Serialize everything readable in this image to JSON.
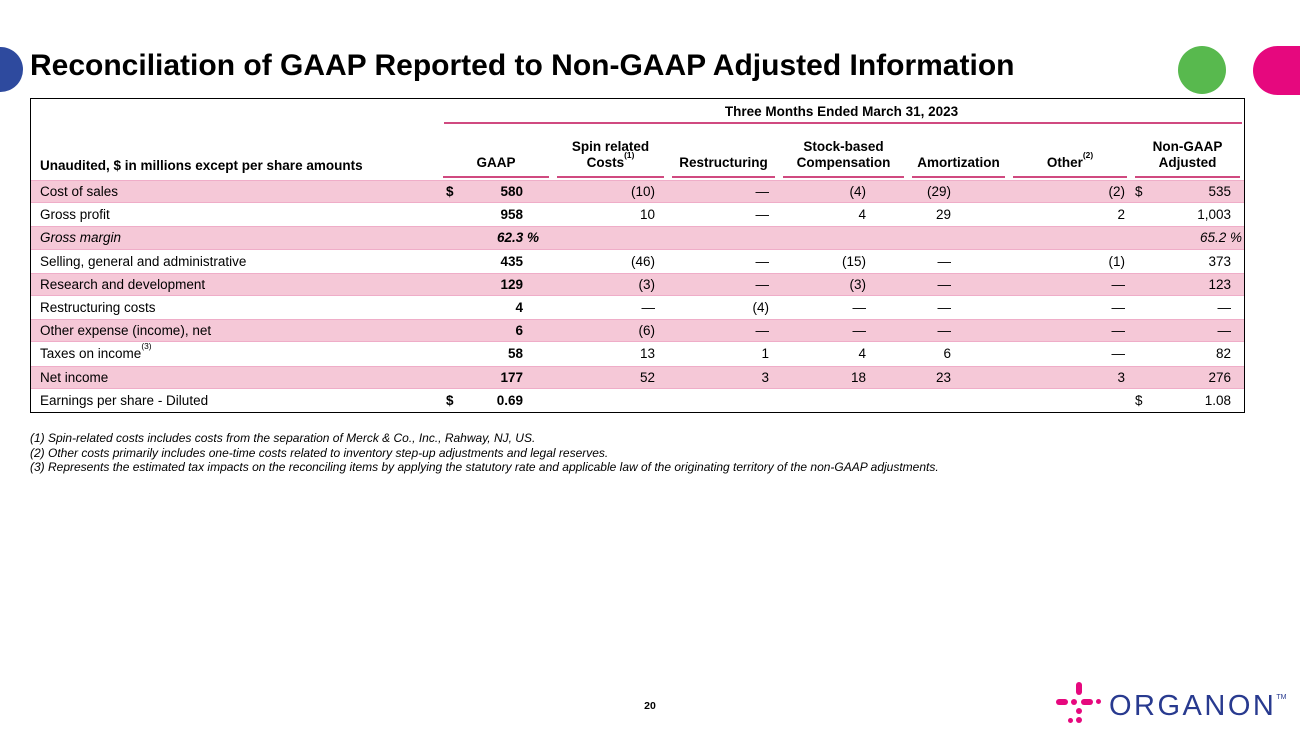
{
  "slide": {
    "title": "Reconciliation of GAAP Reported to Non-GAAP Adjusted Information",
    "page_number": "20"
  },
  "table": {
    "period_header": "Three Months Ended March 31, 2023",
    "corner_label": "Unaudited, $ in millions except per share amounts",
    "columns": [
      {
        "key": "gaap",
        "line1": "",
        "line2": "GAAP",
        "sup": ""
      },
      {
        "key": "spin",
        "line1": "Spin related",
        "line2": "Costs",
        "sup": "(1)"
      },
      {
        "key": "restructuring",
        "line1": "",
        "line2": "Restructuring",
        "sup": ""
      },
      {
        "key": "stock",
        "line1": "Stock-based",
        "line2": "Compensation",
        "sup": ""
      },
      {
        "key": "amortization",
        "line1": "",
        "line2": "Amortization",
        "sup": ""
      },
      {
        "key": "other",
        "line1": "",
        "line2": "Other",
        "sup": "(2)"
      },
      {
        "key": "nongaap",
        "line1": "Non-GAAP",
        "line2": "Adjusted",
        "sup": ""
      }
    ],
    "rows": [
      {
        "label": "Cost of sales",
        "label_sup": "",
        "values": [
          "580",
          "(10)",
          "—",
          "(4)",
          "(29)",
          "(2)",
          "535"
        ],
        "dollars": [
          "gaap",
          "nongaap"
        ],
        "italic": false
      },
      {
        "label": "Gross profit",
        "label_sup": "",
        "values": [
          "958",
          "10",
          "—",
          "4",
          "29",
          "2",
          "1,003"
        ],
        "dollars": [],
        "italic": false
      },
      {
        "label": "Gross margin",
        "label_sup": "",
        "values": [
          "62.3 %",
          "",
          "",
          "",
          "",
          "",
          "65.2 %"
        ],
        "dollars": [],
        "italic": true,
        "tight_nongaap": true,
        "gaap_pct": true
      },
      {
        "label": "Selling, general and administrative",
        "label_sup": "",
        "values": [
          "435",
          "(46)",
          "—",
          "(15)",
          "—",
          "(1)",
          "373"
        ],
        "dollars": [],
        "italic": false
      },
      {
        "label": "Research and development",
        "label_sup": "",
        "values": [
          "129",
          "(3)",
          "—",
          "(3)",
          "—",
          "—",
          "123"
        ],
        "dollars": [],
        "italic": false
      },
      {
        "label": "Restructuring costs",
        "label_sup": "",
        "values": [
          "4",
          "—",
          "(4)",
          "—",
          "—",
          "—",
          "—"
        ],
        "dollars": [],
        "italic": false
      },
      {
        "label": "Other expense (income), net",
        "label_sup": "",
        "values": [
          "6",
          "(6)",
          "—",
          "—",
          "—",
          "—",
          "—"
        ],
        "dollars": [],
        "italic": false
      },
      {
        "label": "Taxes on income",
        "label_sup": "(3)",
        "values": [
          "58",
          "13",
          "1",
          "4",
          "6",
          "—",
          "82"
        ],
        "dollars": [],
        "italic": false
      },
      {
        "label": "Net income",
        "label_sup": "",
        "values": [
          "177",
          "52",
          "3",
          "18",
          "23",
          "3",
          "276"
        ],
        "dollars": [],
        "italic": false
      },
      {
        "label": "Earnings per share - Diluted",
        "label_sup": "",
        "values": [
          "0.69",
          "",
          "",
          "",
          "",
          "",
          "1.08"
        ],
        "dollars": [
          "gaap",
          "nongaap"
        ],
        "italic": false
      }
    ],
    "footnotes": [
      "(1) Spin-related costs includes costs from the separation of Merck & Co., Inc., Rahway, NJ, US.",
      "(2) Other costs primarily includes one-time costs related to inventory step-up adjustments and legal reserves.",
      "(3) Represents the estimated tax impacts on the reconciling items by applying the statutory rate and applicable law of the originating territory of the non-GAAP adjustments."
    ]
  },
  "footer": {
    "logo_text": "ORGANON",
    "logo_tm": "TM"
  },
  "colors": {
    "accent_pink": "#E6087E",
    "accent_green": "#58B94E",
    "accent_blue": "#2E4A9E",
    "row_stripe_pink": "#F5C8D7",
    "table_line_pink": "#D04A80",
    "logo_navy": "#283A8F"
  }
}
